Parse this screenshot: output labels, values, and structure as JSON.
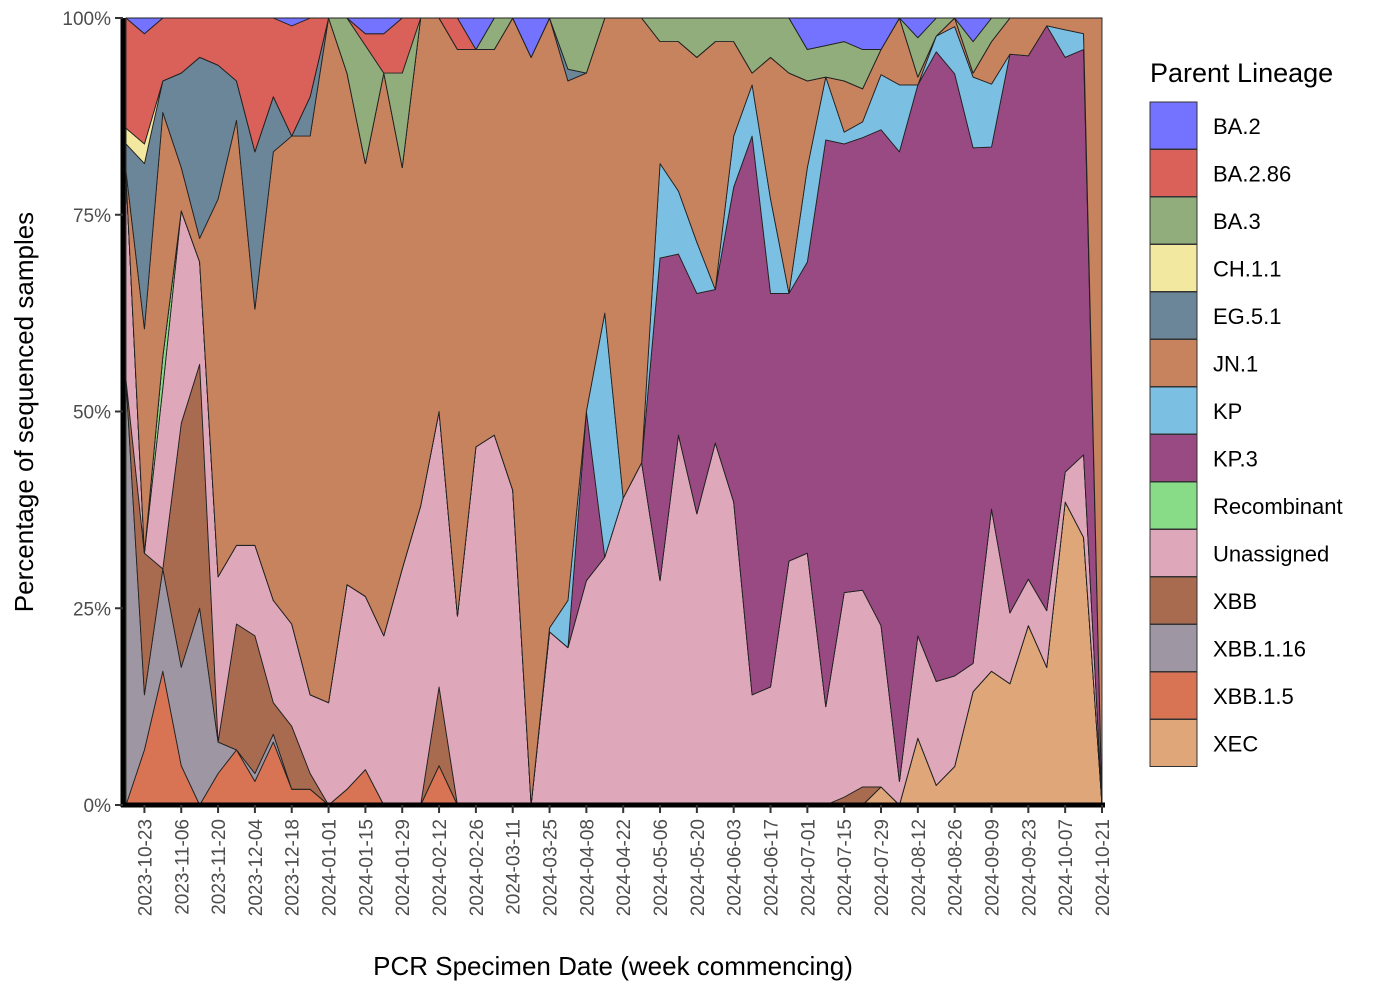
{
  "chart_data": {
    "type": "area",
    "stacked": "percent",
    "xlabel": "PCR Specimen Date (week commencing)",
    "ylabel": "Percentage of sequenced samples",
    "ylim": [
      0,
      100
    ],
    "y_ticks": [
      "0%",
      "25%",
      "50%",
      "75%",
      "100%"
    ],
    "x_tick_labels": [
      "2023-10-23",
      "2023-11-06",
      "2023-11-20",
      "2023-12-04",
      "2023-12-18",
      "2024-01-01",
      "2024-01-15",
      "2024-01-29",
      "2024-02-12",
      "2024-02-26",
      "2024-03-11",
      "2024-03-25",
      "2024-04-08",
      "2024-04-22",
      "2024-05-06",
      "2024-05-20",
      "2024-06-03",
      "2024-06-17",
      "2024-07-01",
      "2024-07-15",
      "2024-07-29",
      "2024-08-12",
      "2024-08-26",
      "2024-09-09",
      "2024-09-23",
      "2024-10-07",
      "2024-10-21"
    ],
    "x": [
      "2023-10-16",
      "2023-10-23",
      "2023-10-30",
      "2023-11-06",
      "2023-11-13",
      "2023-11-20",
      "2023-11-27",
      "2023-12-04",
      "2023-12-11",
      "2023-12-18",
      "2023-12-25",
      "2024-01-01",
      "2024-01-08",
      "2024-01-15",
      "2024-01-22",
      "2024-01-29",
      "2024-02-05",
      "2024-02-12",
      "2024-02-19",
      "2024-02-26",
      "2024-03-04",
      "2024-03-11",
      "2024-03-18",
      "2024-03-25",
      "2024-04-01",
      "2024-04-08",
      "2024-04-15",
      "2024-04-22",
      "2024-04-29",
      "2024-05-06",
      "2024-05-13",
      "2024-05-20",
      "2024-05-27",
      "2024-06-03",
      "2024-06-10",
      "2024-06-17",
      "2024-06-24",
      "2024-07-01",
      "2024-07-08",
      "2024-07-15",
      "2024-07-22",
      "2024-07-29",
      "2024-08-05",
      "2024-08-12",
      "2024-08-19",
      "2024-08-26",
      "2024-09-02",
      "2024-09-09",
      "2024-09-16",
      "2024-09-23",
      "2024-09-30",
      "2024-10-07",
      "2024-10-14",
      "2024-10-21"
    ],
    "legend": {
      "title": "Parent Lineage",
      "position": "right"
    },
    "series": [
      {
        "name": "XEC",
        "color": "#DEA679",
        "values": [
          0,
          0,
          0,
          0,
          0,
          0,
          0,
          0,
          0,
          0,
          0,
          0,
          0,
          0,
          0,
          0,
          0,
          0,
          0,
          0,
          0,
          0,
          0,
          0,
          0,
          0,
          0,
          0,
          0,
          0,
          0,
          0,
          0,
          0,
          0,
          0,
          0,
          0,
          0,
          0,
          0,
          2.3,
          0,
          8.5,
          2.5,
          4.9,
          14.4,
          17,
          15.4,
          22.8,
          17.5,
          38.5,
          34,
          0
        ]
      },
      {
        "name": "XBB.1.5",
        "color": "#D87454",
        "values": [
          0,
          7,
          17,
          5,
          0,
          4,
          7,
          3,
          8,
          2,
          2,
          0,
          2,
          4.5,
          0,
          0,
          0,
          5,
          0,
          0,
          0,
          0,
          0,
          0,
          0,
          0,
          0,
          0,
          0,
          0,
          0,
          0,
          0,
          0,
          0,
          0,
          0,
          0,
          0,
          0,
          0,
          0,
          0,
          0,
          0,
          0,
          0,
          0,
          0,
          0,
          0,
          0,
          0,
          0
        ]
      },
      {
        "name": "XBB.1.16",
        "color": "#9E96A3",
        "values": [
          54,
          7,
          13,
          12.5,
          25,
          4,
          0,
          1,
          1,
          0,
          0,
          0,
          0,
          0,
          0,
          0,
          0,
          0,
          0,
          0,
          0,
          0,
          0,
          0,
          0,
          0,
          0,
          0,
          0,
          0,
          0,
          0,
          0,
          0,
          0,
          0,
          0,
          0,
          0,
          0,
          0,
          0,
          0,
          0,
          0,
          0,
          0,
          0,
          0,
          0,
          0,
          0,
          0,
          0
        ]
      },
      {
        "name": "XBB",
        "color": "#A86B50",
        "values": [
          0,
          18,
          0,
          31,
          31,
          0,
          16,
          17.5,
          4,
          8,
          2,
          0,
          0,
          0,
          0,
          0,
          0,
          10,
          0,
          0,
          0,
          0,
          0,
          0,
          0,
          0,
          0,
          0,
          0,
          0,
          0,
          0,
          0,
          0,
          0,
          0,
          0,
          0,
          0,
          1,
          2.3,
          0,
          0,
          0,
          0,
          0,
          0,
          0,
          0,
          0,
          0,
          0,
          0,
          0
        ]
      },
      {
        "name": "Unassigned",
        "color": "#DFA8BA",
        "values": [
          26,
          0,
          23,
          27,
          13,
          21,
          10,
          11.5,
          13,
          13,
          10,
          13,
          26,
          22,
          21.5,
          30,
          38,
          35,
          24,
          45.5,
          47,
          40,
          0,
          22,
          20,
          28.5,
          31.5,
          39,
          43.5,
          28.5,
          47,
          37,
          46,
          38.5,
          14,
          15,
          31,
          32,
          12.5,
          26,
          25,
          20.5,
          3,
          13,
          13.2,
          11.5,
          3.6,
          20.6,
          9,
          5.9,
          7.2,
          3.8,
          10.5,
          0
        ]
      },
      {
        "name": "Recombinant",
        "color": "#88DC88",
        "values": [
          0,
          0,
          4,
          0,
          0,
          0,
          0,
          0,
          0,
          0,
          0,
          0,
          0,
          0,
          0,
          0,
          0,
          0,
          0,
          0,
          0,
          0,
          0,
          0,
          0,
          0,
          0,
          0,
          0,
          0,
          0,
          0,
          0,
          0,
          0,
          0,
          0,
          0,
          0,
          0,
          0,
          0,
          0,
          0,
          0,
          0,
          0,
          0,
          0,
          0,
          0,
          0,
          0,
          0
        ]
      },
      {
        "name": "KP.3",
        "color": "#994A83",
        "values": [
          0,
          0,
          0,
          0,
          0,
          0,
          0,
          0,
          0,
          0,
          0,
          0,
          0,
          0,
          0,
          0,
          0,
          0,
          0,
          0,
          0,
          0,
          0,
          0,
          0,
          21.5,
          0,
          0,
          0,
          41,
          23,
          28,
          19.5,
          40,
          71,
          50,
          34,
          37,
          72,
          57,
          57.5,
          63,
          80,
          70,
          80,
          76.5,
          65.5,
          46,
          71,
          66.5,
          74.3,
          52.7,
          51.5,
          0
        ]
      },
      {
        "name": "KP",
        "color": "#7BBFE2",
        "values": [
          0,
          0,
          0,
          0,
          0,
          0,
          0,
          0,
          0,
          0,
          0,
          0,
          0,
          0,
          0,
          0,
          0,
          0,
          0,
          0,
          0,
          0,
          0,
          0.5,
          6,
          0,
          31,
          0,
          0,
          12,
          8,
          6.5,
          0,
          6.5,
          6.5,
          12,
          0,
          12,
          8,
          1.5,
          2,
          7,
          8.5,
          0,
          2,
          6,
          9,
          8,
          0,
          0,
          0,
          3.5,
          2,
          0
        ]
      },
      {
        "name": "JN.1",
        "color": "#C7825E",
        "values": [
          0,
          0,
          0,
          0,
          0,
          0,
          0,
          0,
          0,
          0,
          0,
          0,
          0,
          0,
          0,
          0,
          0,
          0,
          0,
          0,
          0,
          0,
          0,
          0,
          0,
          0,
          0,
          0,
          0,
          0,
          0,
          0,
          0,
          0,
          0,
          0,
          0,
          0,
          0,
          0,
          0,
          0,
          0,
          0,
          0,
          0,
          0,
          0,
          0,
          0,
          0,
          0,
          0,
          100
        ]
      },
      {
        "name": "EG.5.1",
        "color": "#6B8599",
        "values": [
          3.5,
          21,
          4,
          12,
          23,
          17,
          5,
          20,
          7,
          0,
          5,
          0,
          0,
          0,
          0,
          0,
          0,
          0,
          0,
          0,
          0,
          0,
          0,
          0,
          1.5,
          0,
          0,
          0,
          0,
          0,
          0,
          0,
          0,
          0,
          0,
          0,
          0,
          0,
          0,
          0,
          0,
          0,
          0,
          0,
          0,
          0,
          0,
          0,
          0,
          0,
          0,
          0,
          0,
          0
        ]
      },
      {
        "name": "CH.1.1",
        "color": "#F3E89F",
        "values": [
          2,
          2.5,
          0,
          0,
          0,
          0,
          0,
          0,
          0,
          0,
          0,
          0,
          0,
          0,
          0,
          0,
          0,
          0,
          0,
          0,
          0,
          0,
          0,
          0,
          0,
          0,
          0,
          0,
          0,
          0,
          0,
          0,
          0,
          0,
          0,
          0,
          0,
          0,
          0,
          0,
          0,
          0,
          0,
          0,
          0,
          0,
          0,
          0,
          0,
          0,
          0,
          0,
          0,
          0
        ]
      },
      {
        "name": "BA.3",
        "color": "#92AD7C",
        "values": [
          0,
          0,
          0,
          0,
          0,
          0,
          0,
          0,
          0,
          0,
          0,
          0,
          0,
          0,
          0,
          0,
          0,
          0,
          0,
          0,
          0,
          0,
          0,
          0,
          0,
          0,
          0,
          0,
          0,
          0,
          0,
          0,
          0,
          0,
          0,
          0,
          0,
          0,
          0,
          0,
          0,
          0,
          0,
          0,
          0,
          0,
          0,
          0,
          0,
          0,
          0,
          0,
          0,
          0
        ]
      },
      {
        "name": "BA.2.86",
        "color": "#D9615A",
        "values": [
          0,
          0,
          0,
          0,
          0,
          0,
          0,
          0,
          0,
          0,
          0,
          0,
          0,
          0,
          0,
          0,
          0,
          0,
          0,
          0,
          0,
          0,
          0,
          0,
          0,
          0,
          0,
          0,
          0,
          0,
          0,
          0,
          0,
          0,
          0,
          0,
          0,
          0,
          0,
          0,
          0,
          0,
          0,
          0,
          0,
          0,
          0,
          0,
          0,
          0,
          0,
          0,
          0,
          0
        ]
      },
      {
        "name": "BA.2",
        "color": "#7373FF",
        "values": [
          0,
          0,
          0,
          0,
          0,
          0,
          0,
          0,
          0,
          0,
          0,
          0,
          0,
          0,
          0,
          0,
          0,
          0,
          0,
          0,
          0,
          0,
          0,
          0,
          0,
          0,
          0,
          0,
          0,
          0,
          0,
          0,
          0,
          0,
          0,
          0,
          0,
          0,
          0,
          0,
          0,
          0,
          0,
          0,
          0,
          0,
          0,
          0,
          0,
          0,
          0,
          0,
          0,
          0
        ]
      }
    ],
    "legend_order": [
      "BA.2",
      "BA.2.86",
      "BA.3",
      "CH.1.1",
      "EG.5.1",
      "JN.1",
      "KP",
      "KP.3",
      "Recombinant",
      "Unassigned",
      "XBB",
      "XBB.1.16",
      "XBB.1.5",
      "XEC"
    ]
  }
}
